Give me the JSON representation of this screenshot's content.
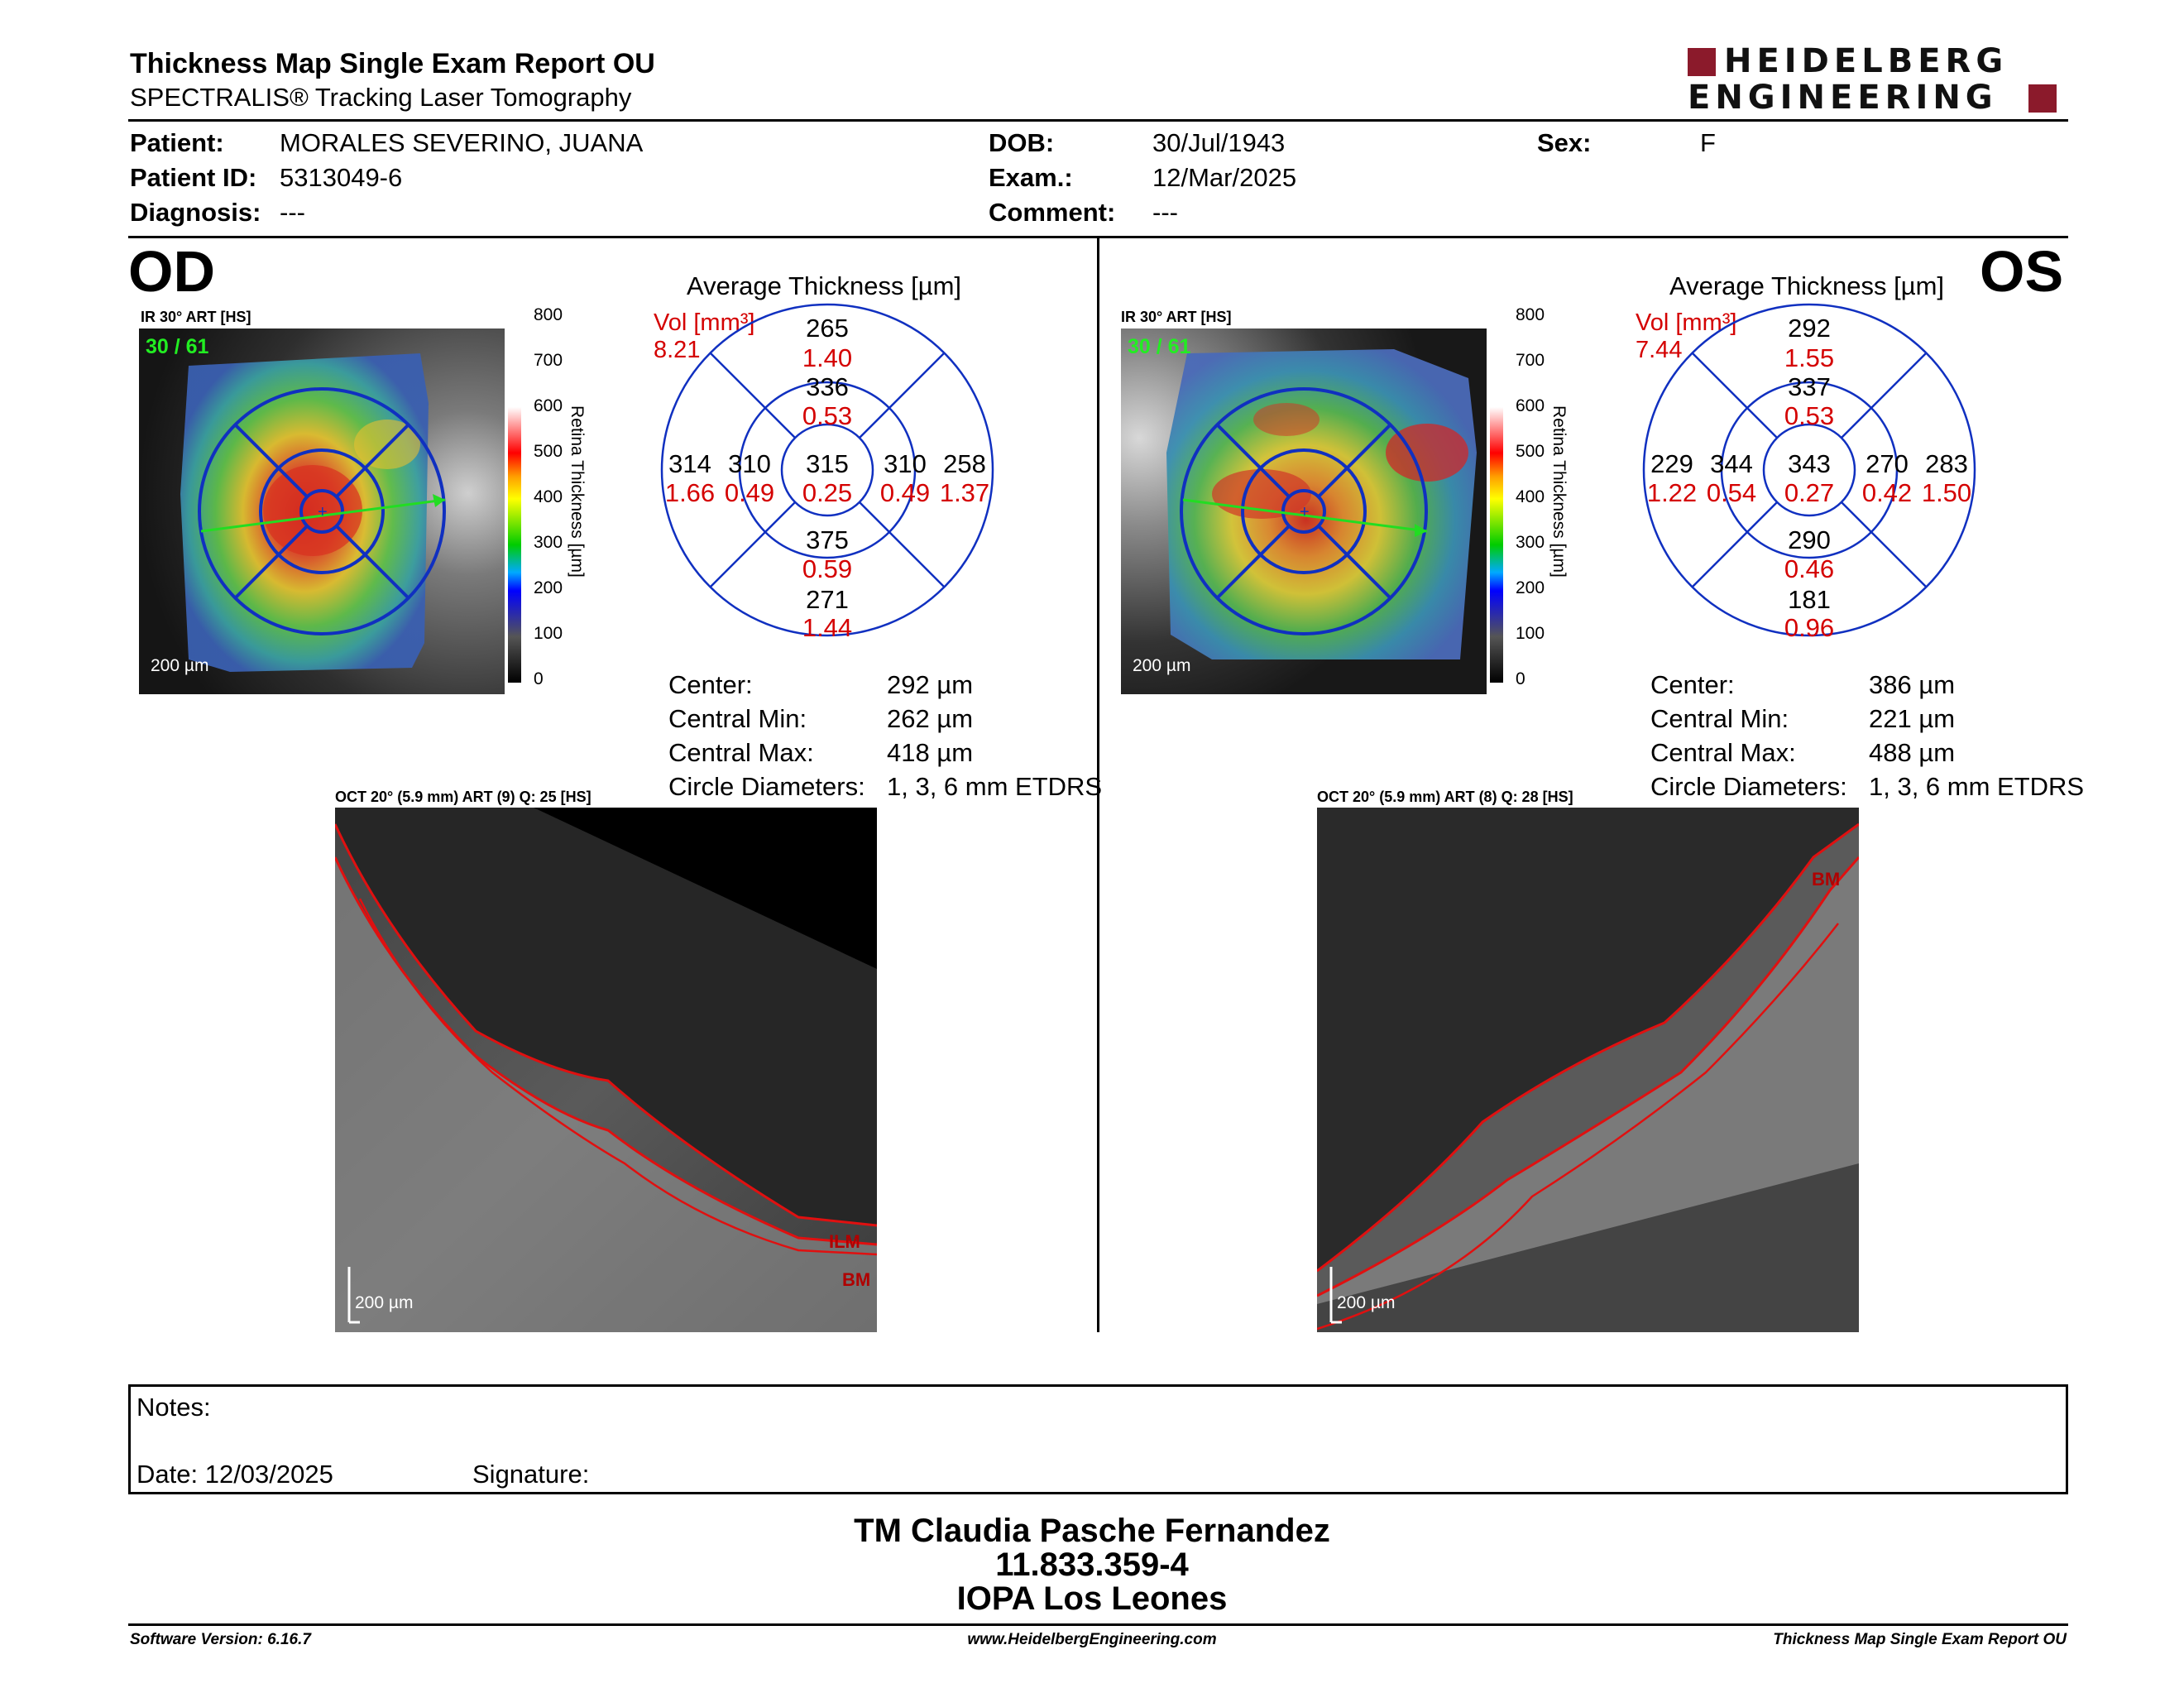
{
  "header": {
    "title": "Thickness Map Single Exam Report OU",
    "subtitle": "SPECTRALIS® Tracking Laser Tomography",
    "logo_line1": "HEIDELBERG",
    "logo_line2": "ENGINEERING",
    "brand_color": "#8b1a2b"
  },
  "patient": {
    "patient_label": "Patient:",
    "patient_value": "MORALES SEVERINO, JUANA",
    "id_label": "Patient ID:",
    "id_value": "5313049-6",
    "diag_label": "Diagnosis:",
    "diag_value": "---",
    "dob_label": "DOB:",
    "dob_value": "30/Jul/1943",
    "exam_label": "Exam.:",
    "exam_value": "12/Mar/2025",
    "comment_label": "Comment:",
    "comment_value": "---",
    "sex_label": "Sex:",
    "sex_value": "F"
  },
  "colorbar": {
    "ticks": [
      "800",
      "700",
      "600",
      "500",
      "400",
      "300",
      "200",
      "100",
      "0"
    ],
    "title": "Retina Thickness [µm]"
  },
  "od": {
    "eye": "OD",
    "ir_label": "IR 30° ART [HS]",
    "frame": "30 / 61",
    "scale": "200 µm",
    "grid_title": "Average Thickness [µm]",
    "vol_label": "Vol [mm³]",
    "vol_value": "8.21",
    "grid": {
      "center_t": "315",
      "center_v": "0.25",
      "inner_sup_t": "336",
      "inner_sup_v": "0.53",
      "inner_inf_t": "375",
      "inner_inf_v": "0.59",
      "inner_left_t": "310",
      "inner_left_v": "0.49",
      "inner_right_t": "310",
      "inner_right_v": "0.49",
      "outer_sup_t": "265",
      "outer_sup_v": "1.40",
      "outer_inf_t": "271",
      "outer_inf_v": "1.44",
      "outer_left_t": "314",
      "outer_left_v": "1.66",
      "outer_right_t": "258",
      "outer_right_v": "1.37"
    },
    "stats": {
      "center_label": "Center:",
      "center_value": "292 µm",
      "min_label": "Central Min:",
      "min_value": "262 µm",
      "max_label": "Central Max:",
      "max_value": "418 µm",
      "circ_label": "Circle Diameters:",
      "circ_value": "1, 3, 6 mm ETDRS"
    },
    "oct_label": "OCT 20° (5.9 mm) ART (9) Q: 25 [HS]",
    "oct_scale": "200 µm",
    "seg_ilm": "ILM",
    "seg_bm": "BM"
  },
  "os": {
    "eye": "OS",
    "ir_label": "IR 30° ART [HS]",
    "frame": "30 / 61",
    "scale": "200 µm",
    "grid_title": "Average Thickness [µm]",
    "vol_label": "Vol [mm³]",
    "vol_value": "7.44",
    "grid": {
      "center_t": "343",
      "center_v": "0.27",
      "inner_sup_t": "337",
      "inner_sup_v": "0.53",
      "inner_inf_t": "290",
      "inner_inf_v": "0.46",
      "inner_left_t": "344",
      "inner_left_v": "0.54",
      "inner_right_t": "270",
      "inner_right_v": "0.42",
      "outer_sup_t": "292",
      "outer_sup_v": "1.55",
      "outer_inf_t": "181",
      "outer_inf_v": "0.96",
      "outer_left_t": "229",
      "outer_left_v": "1.22",
      "outer_right_t": "283",
      "outer_right_v": "1.50"
    },
    "stats": {
      "center_label": "Center:",
      "center_value": "386 µm",
      "min_label": "Central Min:",
      "min_value": "221 µm",
      "max_label": "Central Max:",
      "max_value": "488 µm",
      "circ_label": "Circle Diameters:",
      "circ_value": "1, 3, 6 mm ETDRS"
    },
    "oct_label": "OCT 20° (5.9 mm) ART (8) Q: 28 [HS]",
    "oct_scale": "200 µm",
    "seg_bm": "BM"
  },
  "notes": {
    "notes_label": "Notes:",
    "date_label": "Date: 12/03/2025",
    "signature_label": "Signature:"
  },
  "signature_block": {
    "name": "TM Claudia Pasche Fernandez",
    "id": "11.833.359-4",
    "place": "IOPA Los Leones"
  },
  "footer": {
    "software": "Software Version: 6.16.7",
    "website": "www.HeidelbergEngineering.com",
    "report": "Thickness Map Single Exam Report OU"
  }
}
